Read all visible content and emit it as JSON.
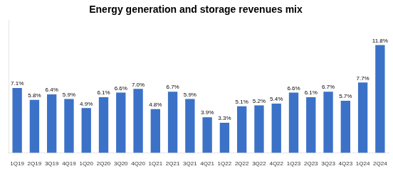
{
  "chart_data": {
    "type": "bar",
    "title": "Energy generation and storage revenues mix",
    "categories": [
      "1Q19",
      "2Q19",
      "3Q19",
      "4Q19",
      "1Q20",
      "2Q20",
      "3Q20",
      "4Q20",
      "1Q21",
      "2Q21",
      "3Q21",
      "4Q21",
      "1Q22",
      "2Q22",
      "3Q22",
      "4Q22",
      "1Q23",
      "2Q23",
      "3Q23",
      "4Q23",
      "1Q24",
      "2Q24"
    ],
    "values": [
      7.1,
      5.8,
      6.4,
      5.9,
      4.9,
      6.1,
      6.6,
      7.0,
      4.8,
      6.7,
      5.9,
      3.9,
      3.3,
      5.1,
      5.2,
      5.4,
      6.6,
      6.1,
      6.7,
      5.7,
      7.7,
      11.8
    ],
    "value_labels": [
      "7.1%",
      "5.8%",
      "6.4%",
      "5.9%",
      "4.9%",
      "6.1%",
      "6.6%",
      "7.0%",
      "4.8%",
      "6.7%",
      "5.9%",
      "3.9%",
      "3.3%",
      "5.1%",
      "5.2%",
      "5.4%",
      "6.6%",
      "6.1%",
      "6.7%",
      "5.7%",
      "7.7%",
      "11.8%"
    ],
    "color": "#3B72C8",
    "ylim": [
      0,
      14.5
    ],
    "grid": false,
    "data_labels": true,
    "tick_labels": "x"
  }
}
